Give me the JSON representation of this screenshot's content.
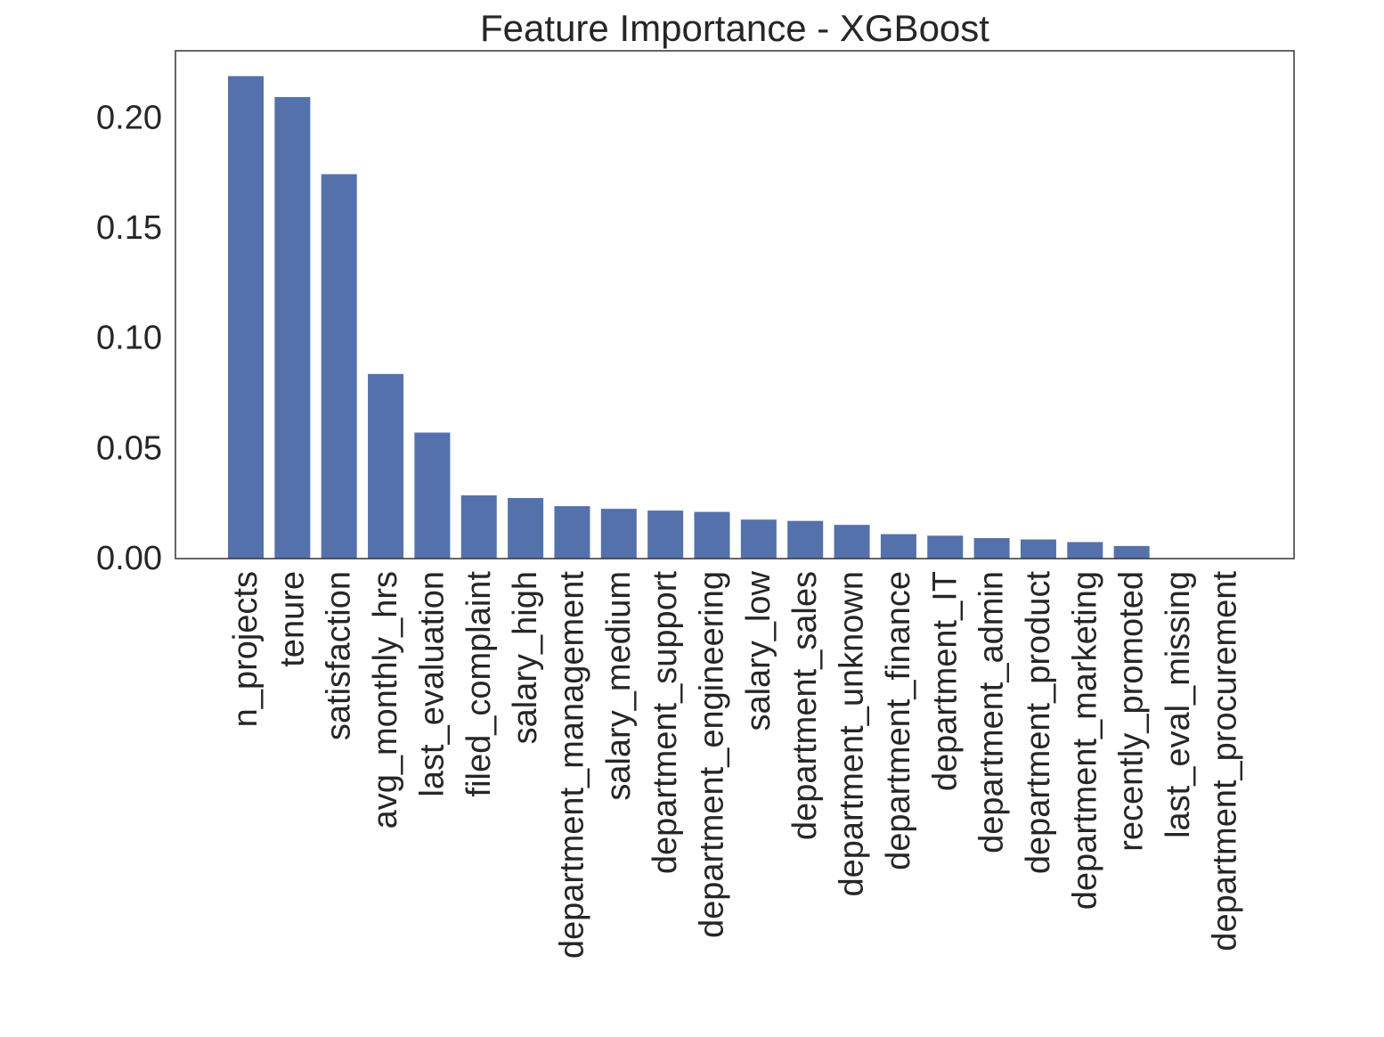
{
  "chart_data": {
    "type": "bar",
    "title": "Feature Importance - XGBoost",
    "xlabel": "",
    "ylabel": "",
    "categories": [
      "n_projects",
      "tenure",
      "satisfaction",
      "avg_monthly_hrs",
      "last_evaluation",
      "filed_complaint",
      "salary_high",
      "department_management",
      "salary_medium",
      "department_support",
      "department_engineering",
      "salary_low",
      "department_sales",
      "department_unknown",
      "department_finance",
      "department_IT",
      "department_admin",
      "department_product",
      "department_marketing",
      "recently_promoted",
      "last_eval_missing",
      "department_procurement"
    ],
    "values": [
      0.219,
      0.2095,
      0.1745,
      0.0838,
      0.0572,
      0.0287,
      0.0275,
      0.0238,
      0.0226,
      0.0218,
      0.0212,
      0.0177,
      0.0171,
      0.0153,
      0.0111,
      0.0104,
      0.0093,
      0.0087,
      0.0075,
      0.0057,
      0.0,
      0.0
    ],
    "ylim": [
      0,
      0.2305
    ],
    "yticks": [
      0.0,
      0.05,
      0.1,
      0.15,
      0.2
    ],
    "ytick_labels": [
      "0.00",
      "0.05",
      "0.10",
      "0.15",
      "0.20"
    ],
    "grid": false,
    "bar_color": "#5471ab",
    "frame_color": "#333333",
    "text_color": "#262626"
  }
}
